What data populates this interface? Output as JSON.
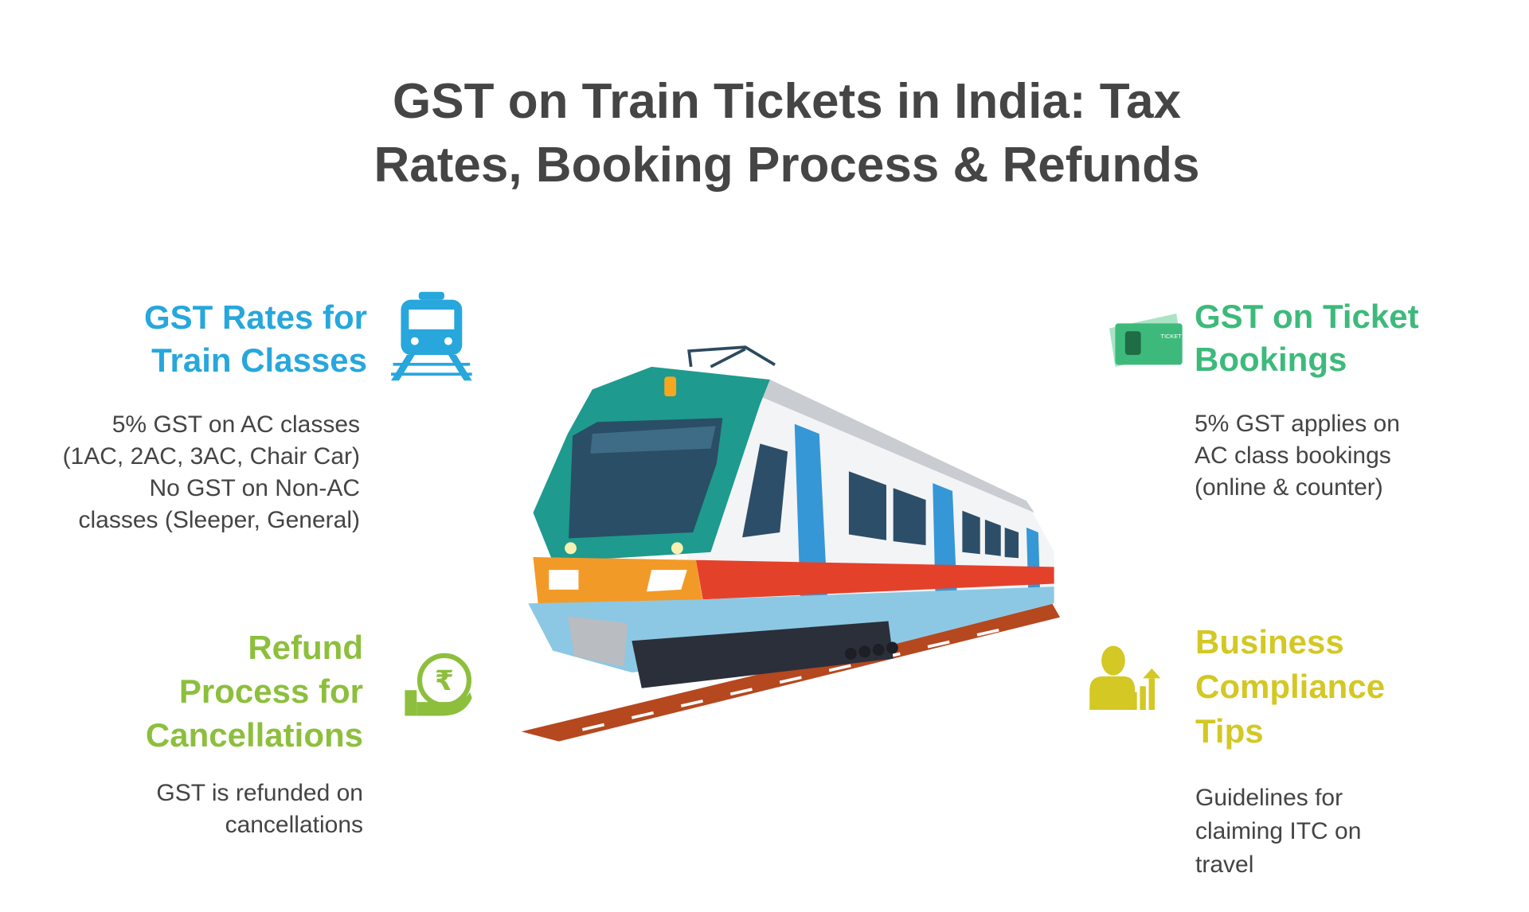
{
  "title": [
    "GST on Train Tickets in India: Tax",
    "Rates, Booking Process & Refunds"
  ],
  "sections": [
    {
      "heading": [
        "GST Rates for",
        "Train Classes"
      ],
      "body": [
        "5% GST on AC classes",
        "(1AC, 2AC, 3AC, Chair Car)",
        "No GST on Non-AC",
        "classes (Sleeper, General)"
      ]
    },
    {
      "heading": [
        "GST on Ticket",
        "Bookings"
      ],
      "body": [
        "5% GST applies on",
        "AC class bookings",
        "(online & counter)"
      ]
    },
    {
      "heading": [
        "Refund",
        "Process for",
        "Cancellations"
      ],
      "body": [
        "GST is refunded on",
        "cancellations"
      ]
    },
    {
      "heading": [
        "Business",
        "Compliance",
        "Tips"
      ],
      "body": [
        "Guidelines for",
        "claiming ITC on",
        "travel"
      ]
    }
  ],
  "icon_text": "TICKET"
}
